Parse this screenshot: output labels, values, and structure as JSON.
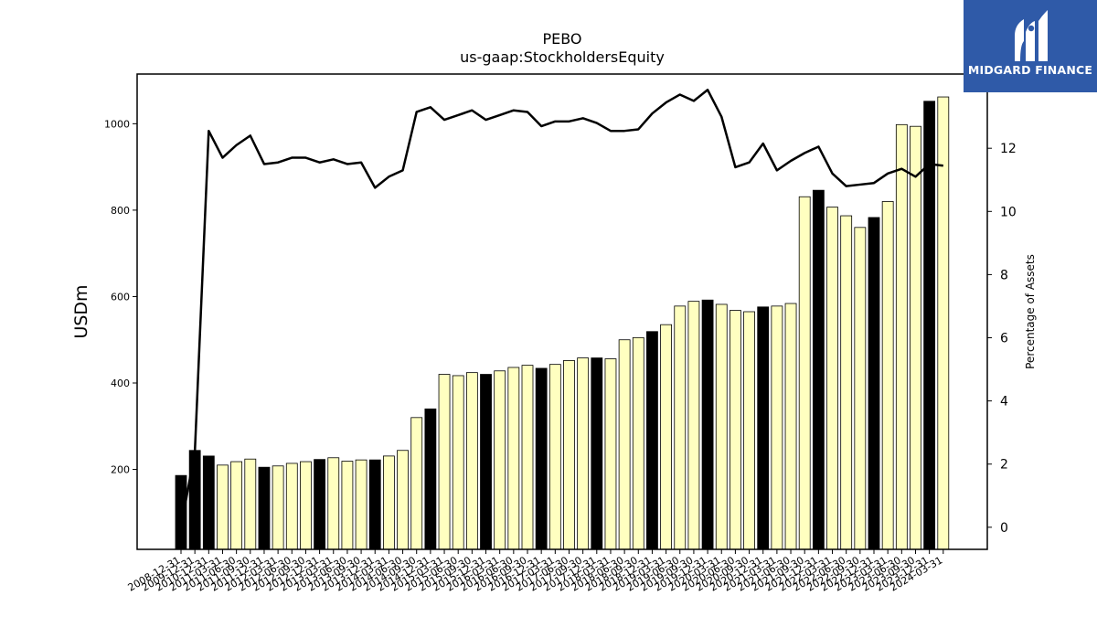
{
  "chart_data": {
    "type": "bar",
    "title": "PEBO",
    "subtitle": "us-gaap:StockholdersEquity",
    "ylabel": "USDm",
    "y2label": "Percentage of Assets",
    "ylim": [
      15,
      1115
    ],
    "y2lim": [
      -0.7,
      14.35
    ],
    "yticks": [
      200,
      400,
      600,
      800,
      1000
    ],
    "y2ticks": [
      0,
      2,
      4,
      6,
      8,
      10,
      12
    ],
    "grid": false,
    "categories": [
      "2008-12-31",
      "2009-12-31",
      "2010-12-31",
      "2011-03-31",
      "2011-06-30",
      "2011-09-30",
      "2011-12-31",
      "2012-03-31",
      "2012-06-30",
      "2012-09-30",
      "2012-12-31",
      "2013-03-31",
      "2013-06-30",
      "2013-09-30",
      "2013-12-31",
      "2014-03-31",
      "2014-06-30",
      "2014-09-30",
      "2014-12-31",
      "2015-03-31",
      "2015-06-30",
      "2015-09-30",
      "2015-12-31",
      "2016-03-31",
      "2016-06-30",
      "2016-09-30",
      "2016-12-31",
      "2017-03-31",
      "2017-06-30",
      "2017-09-30",
      "2017-12-31",
      "2018-03-31",
      "2018-06-30",
      "2018-09-30",
      "2018-12-31",
      "2019-03-31",
      "2019-06-30",
      "2019-09-30",
      "2019-12-31",
      "2020-03-31",
      "2020-06-30",
      "2020-09-30",
      "2020-12-31",
      "2021-03-31",
      "2021-06-30",
      "2021-09-30",
      "2021-12-31",
      "2022-03-31",
      "2022-06-30",
      "2022-09-30",
      "2022-12-31",
      "2023-03-31",
      "2023-06-30",
      "2023-09-30",
      "2023-12-31",
      "2024-03-31"
    ],
    "values": [
      186,
      244,
      231,
      210,
      218,
      224,
      205,
      208,
      214,
      218,
      223,
      227,
      219,
      222,
      222,
      231,
      244,
      320,
      340,
      420,
      417,
      424,
      420,
      428,
      436,
      441,
      434,
      443,
      452,
      458,
      458,
      456,
      500,
      505,
      519,
      535,
      578,
      589,
      592,
      582,
      568,
      565,
      576,
      578,
      584,
      831,
      846,
      807,
      787,
      760,
      783,
      820,
      998,
      994,
      1052,
      1062
    ],
    "bar_highlight": [
      true,
      true,
      true,
      false,
      false,
      false,
      true,
      false,
      false,
      false,
      true,
      false,
      false,
      false,
      true,
      false,
      false,
      false,
      true,
      false,
      false,
      false,
      true,
      false,
      false,
      false,
      true,
      false,
      false,
      false,
      true,
      false,
      false,
      false,
      true,
      false,
      false,
      false,
      true,
      false,
      false,
      false,
      true,
      false,
      false,
      false,
      true,
      false,
      false,
      false,
      true,
      false,
      false,
      false,
      true,
      false
    ],
    "line": [
      0.0,
      2.4,
      12.55,
      11.7,
      12.1,
      12.4,
      11.5,
      11.55,
      11.7,
      11.7,
      11.55,
      11.65,
      11.5,
      11.55,
      10.75,
      11.1,
      11.3,
      13.15,
      13.3,
      12.9,
      13.05,
      13.2,
      12.9,
      13.05,
      13.2,
      13.15,
      12.7,
      12.85,
      12.85,
      12.95,
      12.8,
      12.55,
      12.55,
      12.6,
      13.1,
      13.45,
      13.7,
      13.5,
      13.85,
      13.0,
      11.4,
      11.55,
      12.15,
      11.3,
      11.6,
      11.85,
      12.05,
      11.2,
      10.8,
      10.85,
      10.9,
      11.2,
      11.35,
      11.1,
      11.5,
      11.45
    ],
    "colors": {
      "bar_highlight": "#000000",
      "bar_default": "#ffffc0",
      "bar_edge": "#000000",
      "line": "#000000"
    }
  },
  "logo": {
    "text": "MIDGARD FINANCE",
    "background": "#2f5aa8"
  }
}
